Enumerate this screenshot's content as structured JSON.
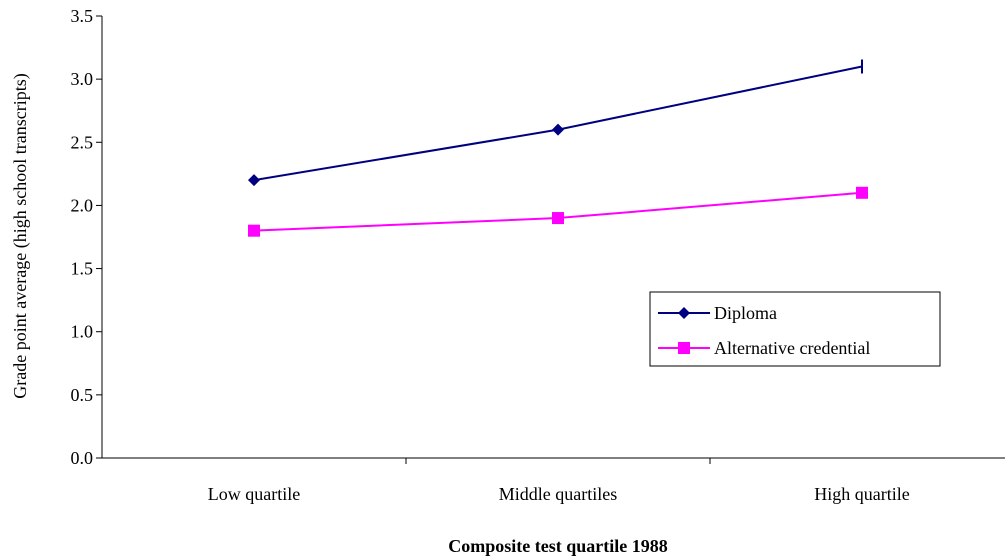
{
  "chart_data": {
    "type": "line",
    "title": "",
    "xlabel": "Composite test quartile 1988",
    "ylabel": "Grade point average (high school transcripts)",
    "categories": [
      "Low quartile",
      "Middle quartiles",
      "High quartile"
    ],
    "ylim": [
      0.0,
      3.5
    ],
    "yticks": [
      "0.0",
      "0.5",
      "1.0",
      "1.5",
      "2.0",
      "2.5",
      "3.0",
      "3.5"
    ],
    "grid": false,
    "legend_position": "lower-right",
    "series": [
      {
        "name": "Diploma",
        "values": [
          2.2,
          2.6,
          3.1
        ],
        "color": "#000080",
        "marker": "diamond"
      },
      {
        "name": "Alternative credential",
        "values": [
          1.8,
          1.9,
          2.1
        ],
        "color": "#FF00FF",
        "marker": "square"
      }
    ]
  }
}
